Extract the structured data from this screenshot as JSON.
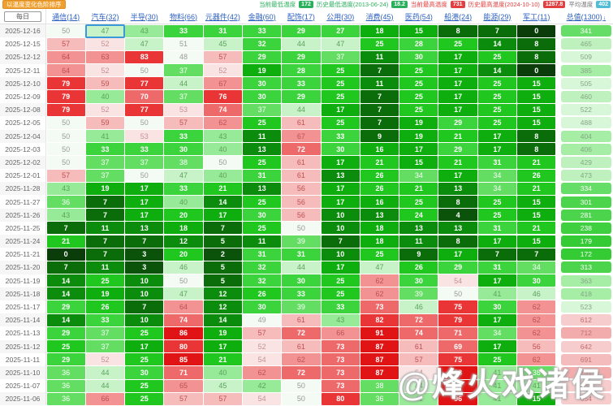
{
  "toolbar": {
    "sort_button": "以温度变化色阶排序"
  },
  "stats": [
    {
      "label": "当前最低温度",
      "value": "172",
      "type": "min"
    },
    {
      "label": "历史最低温度(2013-06-24)",
      "value": "18.2",
      "type": "min"
    },
    {
      "label": "当前最高温度",
      "value": "731",
      "type": "max"
    },
    {
      "label": "历史最高温度(2024-10-10)",
      "value": "1287.8",
      "type": "max"
    },
    {
      "label": "平均温度",
      "value": "402",
      "type": "avg"
    }
  ],
  "table": {
    "date_header": "每日",
    "columns": [
      "通信(14)",
      "汽车(32)",
      "半导(30)",
      "物料(66)",
      "元器件(42)",
      "金融(60)",
      "配饰(17)",
      "公用(30)",
      "消费(45)",
      "医药(54)",
      "船港(24)",
      "能源(29)",
      "军工(11)"
    ],
    "total_column": "总值(1300)",
    "sort_icon": "↓",
    "selected": {
      "row": 0,
      "col": 1
    },
    "rows": [
      {
        "date": "2025-12-16",
        "values": [
          50,
          47,
          43,
          33,
          31,
          33,
          29,
          27,
          18,
          15,
          8,
          7,
          0
        ],
        "total": 341
      },
      {
        "date": "2025-12-15",
        "values": [
          57,
          52,
          47,
          51,
          45,
          32,
          44,
          47,
          25,
          28,
          25,
          14,
          8
        ],
        "total": 465
      },
      {
        "date": "2025-12-12",
        "values": [
          64,
          63,
          83,
          48,
          57,
          29,
          29,
          37,
          11,
          30,
          17,
          25,
          8
        ],
        "total": 509
      },
      {
        "date": "2025-12-11",
        "values": [
          64,
          52,
          50,
          37,
          52,
          19,
          28,
          25,
          7,
          25,
          17,
          14,
          0
        ],
        "total": 385
      },
      {
        "date": "2025-12-10",
        "values": [
          79,
          59,
          77,
          44,
          67,
          30,
          33,
          25,
          11,
          25,
          17,
          25,
          15
        ],
        "total": 505
      },
      {
        "date": "2025-12-09",
        "values": [
          79,
          40,
          70,
          37,
          76,
          30,
          29,
          25,
          7,
          25,
          17,
          25,
          15
        ],
        "total": 460
      },
      {
        "date": "2025-12-08",
        "values": [
          79,
          52,
          77,
          53,
          74,
          37,
          44,
          17,
          7,
          25,
          17,
          25,
          15
        ],
        "total": 522
      },
      {
        "date": "2025-12-05",
        "values": [
          50,
          59,
          50,
          57,
          62,
          25,
          61,
          25,
          7,
          19,
          29,
          25,
          15
        ],
        "total": 488
      },
      {
        "date": "2025-12-04",
        "values": [
          50,
          41,
          53,
          33,
          43,
          11,
          67,
          33,
          9,
          19,
          21,
          17,
          8
        ],
        "total": 404
      },
      {
        "date": "2025-12-03",
        "values": [
          50,
          33,
          33,
          30,
          40,
          13,
          72,
          30,
          16,
          17,
          29,
          17,
          8
        ],
        "total": 406
      },
      {
        "date": "2025-12-02",
        "values": [
          50,
          37,
          37,
          38,
          50,
          25,
          61,
          17,
          21,
          15,
          21,
          31,
          21
        ],
        "total": 429
      },
      {
        "date": "2025-12-01",
        "values": [
          57,
          37,
          50,
          47,
          40,
          31,
          61,
          13,
          26,
          34,
          17,
          34,
          26
        ],
        "total": 473
      },
      {
        "date": "2025-11-28",
        "values": [
          43,
          19,
          17,
          33,
          21,
          13,
          56,
          17,
          26,
          21,
          13,
          34,
          21
        ],
        "total": 334
      },
      {
        "date": "2025-11-27",
        "values": [
          36,
          7,
          17,
          40,
          14,
          25,
          56,
          17,
          16,
          25,
          8,
          25,
          15
        ],
        "total": 301
      },
      {
        "date": "2025-11-26",
        "values": [
          43,
          7,
          17,
          20,
          17,
          30,
          56,
          10,
          13,
          24,
          4,
          25,
          15
        ],
        "total": 281
      },
      {
        "date": "2025-11-25",
        "values": [
          7,
          11,
          13,
          18,
          7,
          25,
          50,
          10,
          18,
          13,
          13,
          31,
          21
        ],
        "total": 238
      },
      {
        "date": "2025-11-24",
        "values": [
          21,
          7,
          7,
          12,
          5,
          11,
          39,
          7,
          18,
          11,
          8,
          17,
          15
        ],
        "total": 179
      },
      {
        "date": "2025-11-21",
        "values": [
          0,
          7,
          3,
          20,
          2,
          31,
          31,
          10,
          25,
          9,
          17,
          7,
          7
        ],
        "total": 172
      },
      {
        "date": "2025-11-20",
        "values": [
          7,
          11,
          3,
          46,
          5,
          32,
          44,
          17,
          47,
          26,
          29,
          31,
          34
        ],
        "total": 313
      },
      {
        "date": "2025-11-19",
        "values": [
          14,
          25,
          10,
          50,
          5,
          32,
          30,
          25,
          62,
          30,
          54,
          17,
          30
        ],
        "total": 363
      },
      {
        "date": "2025-11-18",
        "values": [
          14,
          19,
          10,
          47,
          12,
          26,
          33,
          25,
          62,
          39,
          50,
          41,
          46
        ],
        "total": 418
      },
      {
        "date": "2025-11-17",
        "values": [
          29,
          26,
          7,
          64,
          12,
          30,
          39,
          33,
          73,
          46,
          75,
          30,
          62
        ],
        "total": 523
      },
      {
        "date": "2025-11-14",
        "values": [
          14,
          33,
          10,
          74,
          14,
          49,
          61,
          43,
          82,
          72,
          79,
          17,
          62
        ],
        "total": 612
      },
      {
        "date": "2025-11-13",
        "values": [
          29,
          37,
          25,
          86,
          19,
          57,
          72,
          66,
          91,
          74,
          71,
          34,
          62
        ],
        "total": 712
      },
      {
        "date": "2025-11-12",
        "values": [
          25,
          37,
          17,
          80,
          17,
          52,
          61,
          73,
          87,
          61,
          69,
          17,
          56
        ],
        "total": 642
      },
      {
        "date": "2025-11-11",
        "values": [
          29,
          52,
          25,
          85,
          21,
          54,
          62,
          73,
          87,
          57,
          75,
          25,
          62
        ],
        "total": 691
      },
      {
        "date": "2025-11-10",
        "values": [
          36,
          44,
          30,
          71,
          40,
          62,
          72,
          73,
          87,
          54,
          88,
          41,
          38
        ],
        "total": 731
      },
      {
        "date": "2025-11-07",
        "values": [
          36,
          44,
          25,
          65,
          45,
          42,
          50,
          73,
          38,
          44,
          90,
          41,
          41
        ],
        "total": 634
      },
      {
        "date": "2025-11-06",
        "values": [
          36,
          66,
          25,
          57,
          57,
          54,
          50,
          80,
          36,
          41,
          96,
          41,
          15
        ],
        "total": 654
      }
    ]
  },
  "watermark": "@烽火戏诸侯",
  "colors": {
    "button": "#f0a030",
    "badge_min": "#2aaf5c",
    "badge_max": "#e24040",
    "badge_avg": "#53bdd5",
    "link": "#2b5fc0",
    "selection": "#3a9ad9"
  }
}
